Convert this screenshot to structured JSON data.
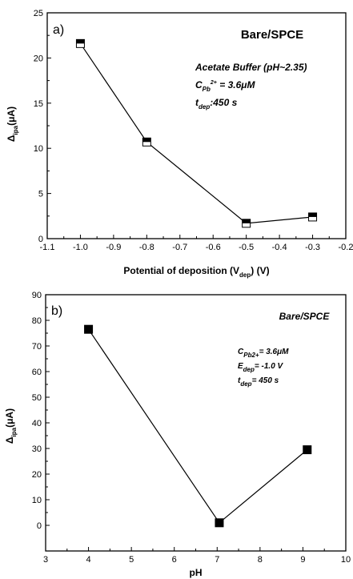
{
  "chart_data": [
    {
      "type": "line",
      "panel_label": "a)",
      "title": "Bare/SPCE",
      "xlabel": {
        "main": "Potential of deposition (V",
        "sub": "dep",
        "tail": ") (V)"
      },
      "ylabel": {
        "main": "Δ",
        "sub": "ipa",
        "tail": "(μA)"
      },
      "xlim": [
        -1.1,
        -0.2
      ],
      "ylim": [
        0,
        25
      ],
      "xticks": [
        "-1.1",
        "-1.0",
        "-0.9",
        "-0.8",
        "-0.7",
        "-0.6",
        "-0.5",
        "-0.4",
        "-0.3",
        "-0.2"
      ],
      "yticks": [
        "0",
        "5",
        "10",
        "15",
        "20",
        "25"
      ],
      "marker": "half-filled-square",
      "annotations": {
        "buffer": "Acetate Buffer (pH~2.35)",
        "conc": {
          "pre": "C",
          "sub": "Pb",
          "sup": "2+",
          "tail": " = 3.6μM"
        },
        "tdep": {
          "pre": "t",
          "sub": "dep",
          "tail": ":450 s"
        }
      },
      "series": [
        {
          "x": [
            -1.0,
            -0.8,
            -0.5,
            -0.3
          ],
          "y": [
            21.6,
            10.7,
            1.7,
            2.4
          ]
        }
      ]
    },
    {
      "type": "line",
      "panel_label": "b)",
      "title": "Bare/SPCE",
      "xlabel": {
        "main": "pH",
        "sub": "",
        "tail": ""
      },
      "ylabel": {
        "main": "Δ",
        "sub": "ipa",
        "tail": "(μA)"
      },
      "xlim": [
        3,
        10
      ],
      "ylim": [
        -10,
        90
      ],
      "xticks": [
        "3",
        "4",
        "5",
        "6",
        "7",
        "8",
        "9",
        "10"
      ],
      "yticks": [
        "0",
        "10",
        "20",
        "30",
        "40",
        "50",
        "60",
        "70",
        "80",
        "90"
      ],
      "marker": "filled-square",
      "annotations": {
        "conc": {
          "pre": "C",
          "sub": "Pb2+",
          "tail": "= 3.6μM"
        },
        "edep": {
          "pre": "E",
          "sub": "dep",
          "tail": "= -1.0 V"
        },
        "tdep": {
          "pre": "t",
          "sub": "dep",
          "tail": "= 450 s"
        }
      },
      "series": [
        {
          "x": [
            4.0,
            7.05,
            9.1
          ],
          "y": [
            76.5,
            1.0,
            29.5
          ]
        }
      ]
    }
  ]
}
